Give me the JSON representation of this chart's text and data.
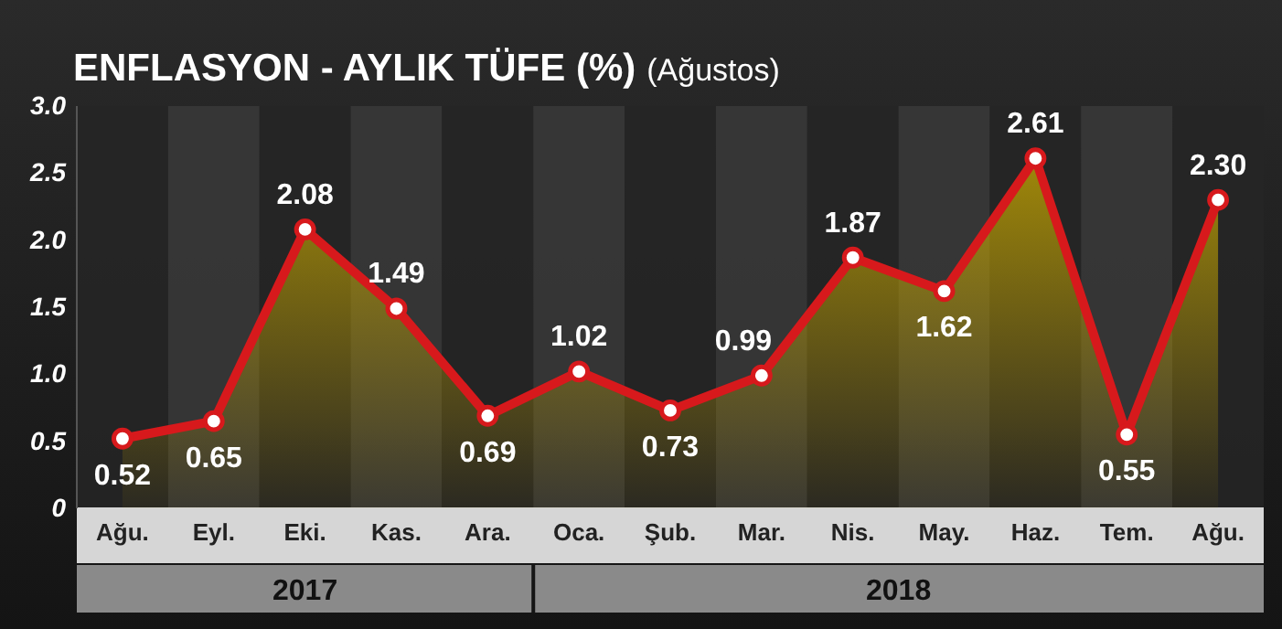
{
  "chart_data": {
    "type": "line",
    "title": "ENFLASYON - AYLIK TÜFE (%)",
    "subtitle": "(Ağustos)",
    "categories": [
      "Ağu.",
      "Eyl.",
      "Eki.",
      "Kas.",
      "Ara.",
      "Oca.",
      "Şub.",
      "Mar.",
      "Nis.",
      "May.",
      "Haz.",
      "Tem.",
      "Ağu."
    ],
    "series": [
      {
        "color": "#d7191c",
        "values": [
          0.52,
          0.65,
          2.08,
          1.49,
          0.69,
          1.02,
          0.73,
          0.99,
          1.87,
          1.62,
          2.61,
          0.55,
          2.3
        ],
        "value_labels": [
          "0.52",
          "0.65",
          "2.08",
          "1.49",
          "0.69",
          "1.02",
          "0.73",
          "0.99",
          "1.87",
          "1.62",
          "2.61",
          "0.55",
          "2.30"
        ]
      }
    ],
    "ylim": [
      0,
      3
    ],
    "yticks": [
      0,
      {
        "value": 0.5,
        "label": "0.5"
      },
      {
        "value": 1,
        "label": "1.0"
      },
      {
        "value": 1.5,
        "label": "1.5"
      },
      {
        "value": 2,
        "label": "2.0"
      },
      {
        "value": 2.5,
        "label": "2.5"
      },
      {
        "value": 3,
        "label": "3.0"
      }
    ],
    "annotations": [
      "2017",
      "2018"
    ],
    "marker": "circle",
    "grid": false
  }
}
